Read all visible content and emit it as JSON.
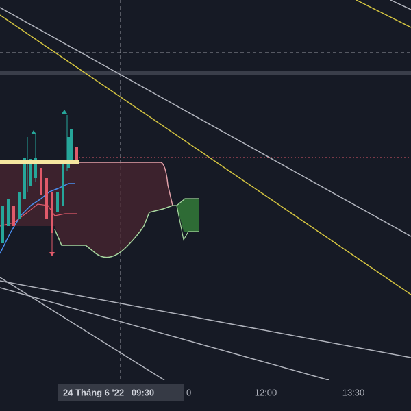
{
  "time_axis": {
    "crosshair_label": "24 Tháng 6 '22   09:30",
    "labels": [
      "0",
      "12:00",
      "13:30"
    ]
  }
}
